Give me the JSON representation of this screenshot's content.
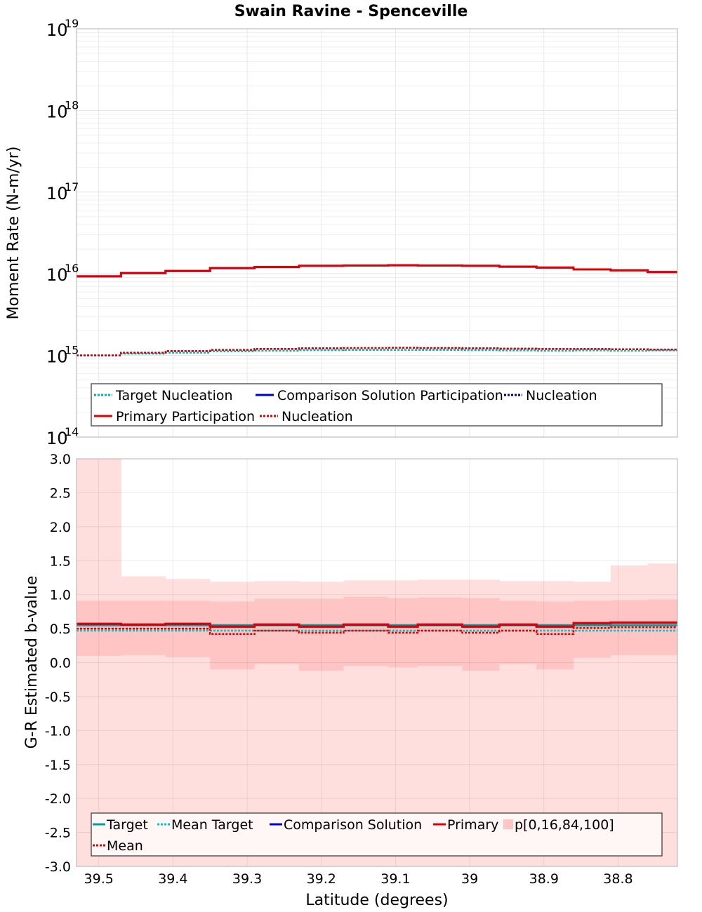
{
  "title": "Swain Ravine - Spenceville",
  "chart_data": [
    {
      "type": "line",
      "panel": "top",
      "xlabel": "Latitude (degrees)",
      "ylabel": "Moment Rate (N-m/yr)",
      "yscale": "log",
      "ylim_exponents": [
        14,
        19
      ],
      "ytick_base": "10",
      "ytick_exponents": [
        "14",
        "15",
        "16",
        "17",
        "18",
        "19"
      ],
      "xlim": [
        39.53,
        38.72
      ],
      "bins": [
        [
          39.53,
          39.47
        ],
        [
          39.47,
          39.41
        ],
        [
          39.41,
          39.35
        ],
        [
          39.35,
          39.29
        ],
        [
          39.29,
          39.23
        ],
        [
          39.23,
          39.17
        ],
        [
          39.17,
          39.11
        ],
        [
          39.11,
          39.07
        ],
        [
          39.07,
          39.01
        ],
        [
          39.01,
          38.96
        ],
        [
          38.96,
          38.91
        ],
        [
          38.91,
          38.86
        ],
        [
          38.86,
          38.81
        ],
        [
          38.81,
          38.76
        ],
        [
          38.76,
          38.72
        ]
      ],
      "series": [
        {
          "name": "Target Nucleation",
          "color": "#00b4b4",
          "dash": "dotted",
          "values": [
            1000000000000000.0,
            1050000000000000.0,
            1080000000000000.0,
            1120000000000000.0,
            1140000000000000.0,
            1160000000000000.0,
            1170000000000000.0,
            1170000000000000.0,
            1170000000000000.0,
            1160000000000000.0,
            1150000000000000.0,
            1140000000000000.0,
            1150000000000000.0,
            1140000000000000.0,
            1150000000000000.0
          ]
        },
        {
          "name": "Comparison Solution Participation",
          "color": "#0000cc",
          "dash": "solid",
          "values": [
            9300000000000000.0,
            1.02e+16,
            1.08e+16,
            1.17e+16,
            1.21e+16,
            1.25e+16,
            1.26e+16,
            1.27e+16,
            1.26e+16,
            1.25e+16,
            1.22e+16,
            1.19e+16,
            1.13e+16,
            1.1e+16,
            1.05e+16
          ]
        },
        {
          "name": "Nucleation",
          "color": "#00008b",
          "dash": "dotted",
          "values": [
            1000000000000000.0,
            1080000000000000.0,
            1130000000000000.0,
            1170000000000000.0,
            1200000000000000.0,
            1220000000000000.0,
            1230000000000000.0,
            1240000000000000.0,
            1230000000000000.0,
            1220000000000000.0,
            1210000000000000.0,
            1200000000000000.0,
            1200000000000000.0,
            1190000000000000.0,
            1180000000000000.0
          ]
        },
        {
          "name": "Primary Participation",
          "color": "#e00000",
          "dash": "solid",
          "values": [
            9300000000000000.0,
            1.02e+16,
            1.08e+16,
            1.17e+16,
            1.21e+16,
            1.25e+16,
            1.26e+16,
            1.27e+16,
            1.26e+16,
            1.25e+16,
            1.22e+16,
            1.19e+16,
            1.13e+16,
            1.1e+16,
            1.05e+16
          ]
        },
        {
          "name": "Nucleation",
          "color": "#e00000",
          "dash": "dotted",
          "values": [
            1000000000000000.0,
            1080000000000000.0,
            1130000000000000.0,
            1170000000000000.0,
            1200000000000000.0,
            1220000000000000.0,
            1230000000000000.0,
            1240000000000000.0,
            1230000000000000.0,
            1220000000000000.0,
            1210000000000000.0,
            1200000000000000.0,
            1200000000000000.0,
            1190000000000000.0,
            1180000000000000.0
          ]
        }
      ],
      "legend": [
        "Target Nucleation",
        "Comparison Solution Participation",
        "Nucleation",
        "Primary Participation",
        "Nucleation"
      ],
      "legend_position": "bottom"
    },
    {
      "type": "line",
      "panel": "bottom",
      "xlabel": "Latitude (degrees)",
      "ylabel": "G-R Estimated b-value",
      "ylim": [
        -3.0,
        3.0
      ],
      "yticks": [
        "3.0",
        "2.5",
        "2.0",
        "1.5",
        "1.0",
        "0.5",
        "0.0",
        "-0.5",
        "-1.0",
        "-1.5",
        "-2.0",
        "-2.5",
        "-3.0"
      ],
      "xticks": [
        "39.5",
        "39.4",
        "39.3",
        "39.2",
        "39.1",
        "39",
        "38.9",
        "38.8"
      ],
      "xlim": [
        39.53,
        38.72
      ],
      "bins": [
        [
          39.53,
          39.47
        ],
        [
          39.47,
          39.41
        ],
        [
          39.41,
          39.35
        ],
        [
          39.35,
          39.29
        ],
        [
          39.29,
          39.23
        ],
        [
          39.23,
          39.17
        ],
        [
          39.17,
          39.11
        ],
        [
          39.11,
          39.07
        ],
        [
          39.07,
          39.01
        ],
        [
          39.01,
          38.96
        ],
        [
          38.96,
          38.91
        ],
        [
          38.91,
          38.86
        ],
        [
          38.86,
          38.81
        ],
        [
          38.81,
          38.76
        ],
        [
          38.76,
          38.72
        ]
      ],
      "bands": {
        "p100": [
          3.0,
          1.27,
          1.23,
          1.19,
          1.2,
          1.19,
          1.21,
          1.21,
          1.22,
          1.22,
          1.2,
          1.2,
          1.19,
          1.43,
          1.46
        ],
        "p84": [
          0.91,
          0.91,
          0.91,
          0.9,
          0.94,
          0.94,
          0.97,
          0.95,
          0.96,
          0.95,
          0.91,
          0.9,
          0.91,
          0.92,
          0.93
        ],
        "p16": [
          0.1,
          0.11,
          0.08,
          -0.1,
          -0.02,
          -0.12,
          -0.05,
          -0.07,
          -0.05,
          -0.12,
          -0.02,
          -0.1,
          0.07,
          0.11,
          0.11
        ],
        "p0": [
          -3.0,
          -3.0,
          -3.0,
          -3.0,
          -3.0,
          -3.0,
          -3.0,
          -3.0,
          -3.0,
          -3.0,
          -3.0,
          -3.0,
          -3.0,
          -3.0,
          -3.0
        ]
      },
      "series": [
        {
          "name": "Target",
          "color": "#00a0a0",
          "dash": "solid",
          "values": [
            0.55,
            0.55,
            0.55,
            0.55,
            0.55,
            0.55,
            0.55,
            0.55,
            0.55,
            0.55,
            0.55,
            0.55,
            0.55,
            0.55,
            0.55
          ]
        },
        {
          "name": "Mean Target",
          "color": "#00c8c8",
          "dash": "dotted",
          "values": [
            0.47,
            0.47,
            0.47,
            0.47,
            0.47,
            0.47,
            0.47,
            0.47,
            0.47,
            0.47,
            0.47,
            0.47,
            0.47,
            0.47,
            0.47
          ]
        },
        {
          "name": "Comparison Solution",
          "color": "#0000cc",
          "dash": "solid",
          "values": [
            0.57,
            0.56,
            0.57,
            0.53,
            0.56,
            0.53,
            0.56,
            0.53,
            0.56,
            0.53,
            0.56,
            0.53,
            0.58,
            0.59,
            0.59
          ]
        },
        {
          "name": "Primary",
          "color": "#e00000",
          "dash": "solid",
          "values": [
            0.57,
            0.56,
            0.57,
            0.53,
            0.56,
            0.53,
            0.56,
            0.53,
            0.56,
            0.53,
            0.56,
            0.53,
            0.58,
            0.59,
            0.59
          ]
        },
        {
          "name": "Mean",
          "color": "#e00000",
          "dash": "dotted",
          "values": [
            0.5,
            0.5,
            0.5,
            0.42,
            0.47,
            0.44,
            0.47,
            0.44,
            0.47,
            0.44,
            0.47,
            0.42,
            0.51,
            0.52,
            0.52
          ]
        }
      ],
      "band_legend": "p[0,16,84,100]",
      "band_colors": {
        "outer": "#ffdede",
        "inner": "#ffc4c4"
      },
      "legend": [
        "Target",
        "Mean Target",
        "Comparison Solution",
        "Primary",
        "p[0,16,84,100]",
        "Mean"
      ],
      "legend_position": "bottom"
    }
  ]
}
